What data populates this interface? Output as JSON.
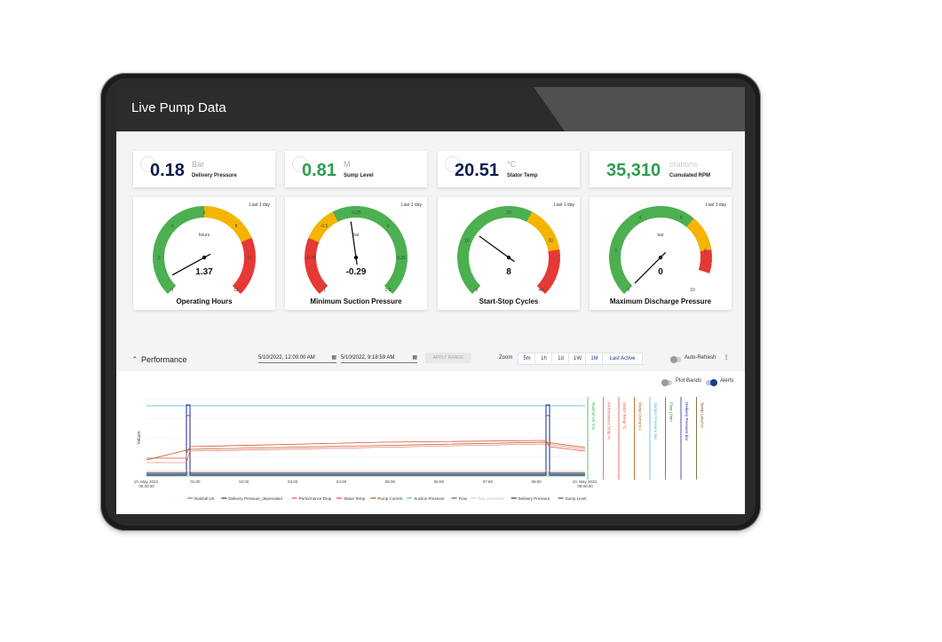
{
  "app": {
    "title": "Live Pump Data"
  },
  "kpis": [
    {
      "value": "0.18",
      "unit": "Bar",
      "label": "Delivery Pressure",
      "color": "#0b1f4d"
    },
    {
      "value": "0.81",
      "unit": "M",
      "label": "Sump Level",
      "color": "#2e9e4f"
    },
    {
      "value": "20.51",
      "unit": "°C",
      "label": "Stator Temp",
      "color": "#0b1f4d"
    },
    {
      "value": "35,310",
      "unit": "otations",
      "label": "Cumulated RPM",
      "color": "#2e9e4f"
    }
  ],
  "gauges": [
    {
      "title": "Operating Hours",
      "value": "1.37",
      "unit": "hours",
      "range": "Last 1 day",
      "needle_fraction": 0.06,
      "ticks": [
        "0",
        "2",
        "4",
        "6",
        "8",
        "10",
        "12"
      ]
    },
    {
      "title": "Minimum Suction Pressure",
      "value": "-0.29",
      "unit": "bar",
      "range": "Last 1 day",
      "needle_fraction": 0.47,
      "ticks": [
        "-1",
        "-0.75",
        "-0.5",
        "-0.25",
        "0",
        "0.25",
        "0.5"
      ]
    },
    {
      "title": "Start-Stop Cycles",
      "value": "8",
      "unit": "",
      "range": "Last 1 day",
      "needle_fraction": 0.3,
      "ticks": [
        "0",
        "10",
        "20",
        "30",
        "40"
      ]
    },
    {
      "title": "Maximum Discharge Pressure",
      "value": "0",
      "unit": "bar",
      "range": "Last 1 day",
      "needle_fraction": 0.0,
      "ticks": [
        "0",
        "2",
        "4",
        "6",
        "8",
        "10"
      ]
    }
  ],
  "performance": {
    "title": "Performance",
    "start": "5/10/2022, 12:00:00 AM",
    "end": "5/10/2022, 9:18:59 AM",
    "apply_label": "APPLY RANGE",
    "zoom_label": "Zoom",
    "zoom_options": [
      "5m",
      "1h",
      "1d",
      "1W",
      "1M",
      "Last Active"
    ],
    "auto_refresh_label": "Auto-Refresh",
    "plot_bands_label": "Plot Bands",
    "alerts_label": "Alerts"
  },
  "chart_data": {
    "type": "line",
    "ylabel": "Values",
    "x_ticks": [
      "10. May 2022, 00:00:00",
      "01:00",
      "02:00",
      "03:00",
      "04:00",
      "05:00",
      "06:00",
      "07:00",
      "08:00",
      "10. May 2022, 09:00:00"
    ],
    "extra_axes": [
      "Rainfall UK mm",
      "Performance Drop %",
      "Stator Temp °C",
      "Pump Current A",
      "Suction Pressure bar",
      "Flow L/min",
      "Delivery Pressure bar",
      "Sump Level m"
    ],
    "legend": [
      {
        "name": "Rainfall UK",
        "color": "#3cb043"
      },
      {
        "name": "Delivery Pressure_deprecated",
        "color": "#1e2a9e"
      },
      {
        "name": "Performance Drop",
        "color": "#e4554a"
      },
      {
        "name": "Stator Temp",
        "color": "#e74c3c"
      },
      {
        "name": "Pump Current",
        "color": "#b45309"
      },
      {
        "name": "Suction Pressure",
        "color": "#4fb3e0"
      },
      {
        "name": "Flow",
        "color": "#2e7d32"
      },
      {
        "name": "flow_corrected",
        "color": "#cfcfcf"
      },
      {
        "name": "Delivery Pressure",
        "color": "#1e2a7a"
      },
      {
        "name": "Sump Level",
        "color": "#6b4f1d"
      }
    ]
  }
}
